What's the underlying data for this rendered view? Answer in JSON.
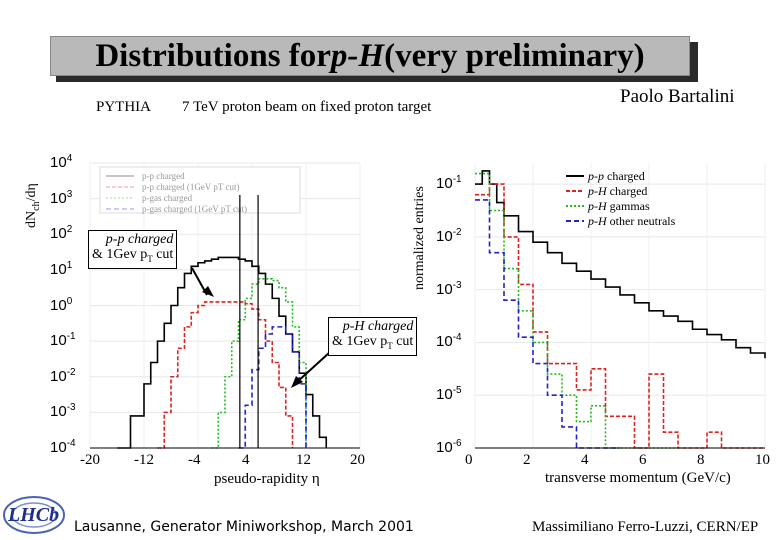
{
  "header": {
    "title_prefix": "Distributions for ",
    "title_italic": "p-H",
    "title_suffix": " (very preliminary)",
    "author": "Paolo Bartalini"
  },
  "subtitle": {
    "generator": "PYTHIA",
    "description": "7 TeV proton beam on fixed proton target"
  },
  "footer": {
    "left": "Lausanne, Generator Miniworkshop, March 2001",
    "right": "Massimiliano Ferro-Luzzi, CERN/EP"
  },
  "colors": {
    "pp_charged": "#000000",
    "pp_charged_cut": "#dd2222",
    "pH_gammas": "#22bb22",
    "pH_other": "#2222cc",
    "title_box": "#b9b9b9"
  },
  "chart_data": [
    {
      "type": "line",
      "ylabel": "dN",
      "ylabel_sub": "ch",
      "ylabel_suffix": "/dη",
      "xlabel": "pseudo-rapidity η",
      "x_ticks": [
        "-20",
        "-12",
        "-4",
        "4",
        "12",
        "20"
      ],
      "y_ticks": [
        {
          "base": "10",
          "exp": "4"
        },
        {
          "base": "10",
          "exp": "3"
        },
        {
          "base": "10",
          "exp": "2"
        },
        {
          "base": "10",
          "exp": "1"
        },
        {
          "base": "10",
          "exp": "0"
        },
        {
          "base": "10",
          "exp": "-1"
        },
        {
          "base": "10",
          "exp": "-2"
        },
        {
          "base": "10",
          "exp": "-3"
        },
        {
          "base": "10",
          "exp": "-4"
        }
      ],
      "xlim": [
        -20,
        20
      ],
      "ylim_log10": [
        -4,
        4
      ],
      "inner_legend": [
        "p-p charged",
        "p-p charged (1GeV pT cut)",
        "p-gas charged",
        "p-gas charged (1GeV pT cut)"
      ],
      "annotations": [
        {
          "line1": "p-p charged",
          "line2_prefix": "& 1Gev p",
          "line2_sub": "T",
          "line2_suffix": " cut"
        },
        {
          "line1": "p-H charged",
          "line2_prefix": "& 1Gev p",
          "line2_sub": "T",
          "line2_suffix": " cut"
        }
      ],
      "vertical_lines_x": [
        2.2,
        4.9
      ],
      "series": [
        {
          "color_key": "pp_charged",
          "dash": "",
          "x": [
            -16,
            -14,
            -12,
            -11,
            -10,
            -9,
            -8,
            -7,
            -6,
            -5,
            -4,
            -3,
            -2,
            -1,
            0,
            1,
            2,
            3,
            4,
            5,
            6,
            7,
            8,
            9,
            10,
            11,
            12,
            13,
            14,
            15
          ],
          "log10y": [
            -4,
            -3.1,
            -2.2,
            -1.6,
            -1.0,
            -0.5,
            0,
            0.5,
            0.9,
            1.1,
            1.2,
            1.25,
            1.3,
            1.35,
            1.35,
            1.35,
            1.3,
            1.25,
            1.1,
            0.9,
            0.6,
            0.2,
            -0.3,
            -0.8,
            -1.3,
            -1.9,
            -2.5,
            -3.1,
            -3.7,
            -4
          ]
        },
        {
          "color_key": "pp_charged_cut",
          "dash": "4,2",
          "x": [
            -10,
            -9,
            -8,
            -7,
            -6,
            -5,
            -4,
            -3,
            -2,
            -1,
            0,
            1,
            2,
            3,
            4,
            5,
            6,
            7,
            8,
            9,
            10
          ],
          "log10y": [
            -4,
            -3,
            -2,
            -1.2,
            -0.6,
            -0.2,
            0.0,
            0.1,
            0.1,
            0.1,
            0.1,
            0.1,
            0.1,
            0.05,
            -0.1,
            -0.4,
            -1.0,
            -1.6,
            -2.3,
            -3.1,
            -4
          ]
        },
        {
          "color_key": "pH_gammas",
          "dash": "2,2",
          "x": [
            -2,
            -1,
            0,
            1,
            2,
            3,
            4,
            5,
            6,
            7,
            8,
            9,
            10,
            11,
            12
          ],
          "log10y": [
            -4,
            -3,
            -2,
            -1,
            -0.4,
            0.2,
            0.6,
            0.75,
            0.75,
            0.7,
            0.5,
            0.1,
            -0.6,
            -1.6,
            -4
          ]
        },
        {
          "color_key": "pH_other",
          "dash": "5,3",
          "x": [
            2,
            3,
            4,
            5,
            6,
            7,
            8,
            9,
            10,
            11,
            12
          ],
          "log10y": [
            -4,
            -2.8,
            -1.8,
            -1.2,
            -0.8,
            -0.6,
            -0.6,
            -0.8,
            -1.3,
            -2.2,
            -4
          ]
        }
      ]
    },
    {
      "type": "line",
      "ylabel": "normalized entries",
      "xlabel": "transverse momentum (GeV/c)",
      "x_ticks": [
        "0",
        "2",
        "4",
        "6",
        "8",
        "10"
      ],
      "y_ticks": [
        {
          "base": "10",
          "exp": "-1"
        },
        {
          "base": "10",
          "exp": "-2"
        },
        {
          "base": "10",
          "exp": "-3"
        },
        {
          "base": "10",
          "exp": "-4"
        },
        {
          "base": "10",
          "exp": "-5"
        },
        {
          "base": "10",
          "exp": "-6"
        }
      ],
      "xlim": [
        0,
        10
      ],
      "ylim_log10": [
        -6,
        -0.6
      ],
      "legend": [
        {
          "label_italic": "p-p",
          "label_rest": " charged",
          "color_key": "pp_charged",
          "dash": ""
        },
        {
          "label_italic": "p-H",
          "label_rest": " charged",
          "color_key": "pp_charged_cut",
          "dash": "4,2"
        },
        {
          "label_italic": "p-H",
          "label_rest": " gammas",
          "color_key": "pH_gammas",
          "dash": "2,2"
        },
        {
          "label_italic": "p-H",
          "label_rest": " other neutrals",
          "color_key": "pH_other",
          "dash": "5,3"
        }
      ],
      "series": [
        {
          "color_key": "pp_charged",
          "dash": "",
          "x": [
            0,
            0.25,
            0.5,
            0.75,
            1.0,
            1.5,
            2,
            2.5,
            3,
            3.5,
            4,
            4.5,
            5,
            5.5,
            6,
            6.5,
            7,
            7.5,
            8,
            8.5,
            9,
            9.5,
            10
          ],
          "log10y": [
            -1.0,
            -0.75,
            -1.0,
            -1.35,
            -1.6,
            -1.9,
            -2.1,
            -2.3,
            -2.5,
            -2.65,
            -2.8,
            -2.95,
            -3.1,
            -3.25,
            -3.4,
            -3.5,
            -3.6,
            -3.75,
            -3.85,
            -3.95,
            -4.1,
            -4.2,
            -4.3
          ]
        },
        {
          "color_key": "pp_charged_cut",
          "dash": "4,2",
          "x": [
            0,
            0.5,
            1,
            1.5,
            2,
            2.5,
            3,
            3.5,
            4,
            4.5,
            5,
            5.5,
            6,
            6.5,
            7,
            7.5,
            8,
            8.5,
            9,
            9.5,
            10
          ],
          "log10y": [
            -1.2,
            -1.0,
            -2.0,
            -2.9,
            -3.8,
            -4.4,
            -4.4,
            -4.9,
            -4.5,
            -5.4,
            -5.4,
            -6,
            -4.6,
            -5.7,
            -6,
            -6,
            -5.7,
            -6,
            -6,
            -6,
            -6
          ]
        },
        {
          "color_key": "pH_gammas",
          "dash": "2,2",
          "x": [
            0,
            0.5,
            1,
            1.5,
            2,
            2.5,
            3,
            3.5,
            4,
            4.5,
            5,
            5.5,
            6,
            6.5,
            7
          ],
          "log10y": [
            -0.8,
            -1.5,
            -2.6,
            -3.4,
            -4.0,
            -4.6,
            -5.0,
            -5.5,
            -5.2,
            -6,
            -6,
            -6,
            -6,
            -6,
            -6
          ]
        },
        {
          "color_key": "pH_other",
          "dash": "5,3",
          "x": [
            0,
            0.5,
            1,
            1.5,
            2,
            2.5,
            3,
            3.5,
            4,
            4.5,
            5
          ],
          "log10y": [
            -1.3,
            -2.3,
            -3.2,
            -3.9,
            -4.4,
            -5.0,
            -5.6,
            -6,
            -6,
            -6,
            -6
          ]
        }
      ]
    }
  ]
}
